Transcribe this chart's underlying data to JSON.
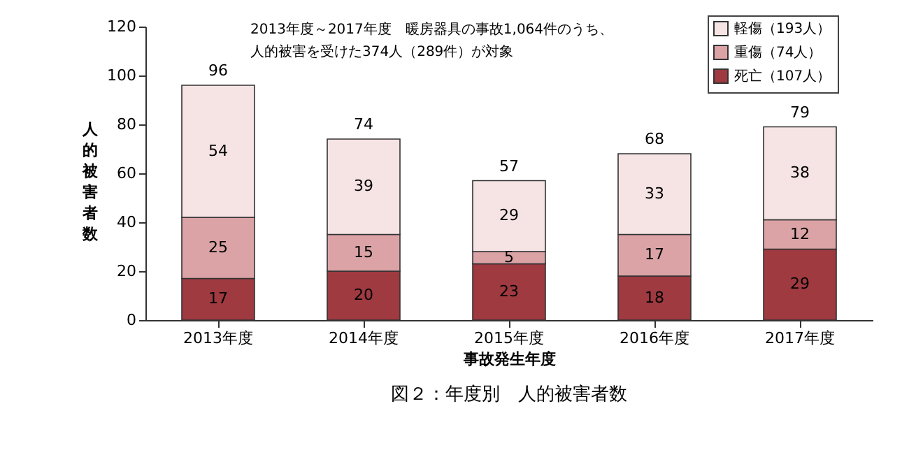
{
  "chart_data": {
    "type": "bar",
    "stacked": true,
    "title": "図２：年度別　人的被害者数",
    "xlabel": "事故発生年度",
    "ylabel": "人的被害者数",
    "categories": [
      "2013年度",
      "2014年度",
      "2015年度",
      "2016年度",
      "2017年度"
    ],
    "series": [
      {
        "name": "死亡（107人）",
        "color": "#9e3a40",
        "values": [
          17,
          20,
          23,
          18,
          29
        ]
      },
      {
        "name": "重傷（74人）",
        "color": "#dba3a6",
        "values": [
          25,
          15,
          5,
          17,
          12
        ]
      },
      {
        "name": "軽傷（193人）",
        "color": "#f6e3e4",
        "values": [
          54,
          39,
          29,
          33,
          38
        ]
      }
    ],
    "totals": [
      "96",
      "74",
      "57",
      "68",
      "79"
    ],
    "data_labels": true,
    "ylim": [
      0,
      120
    ],
    "yticks": [
      0,
      20,
      40,
      60,
      80,
      100,
      120
    ],
    "grid": false,
    "legend": "top right",
    "annotations": [
      "2013年度～2017年度　暖房器具の事故1,064件のうち、",
      "人的被害を受けた374人（289件）が対象"
    ]
  }
}
